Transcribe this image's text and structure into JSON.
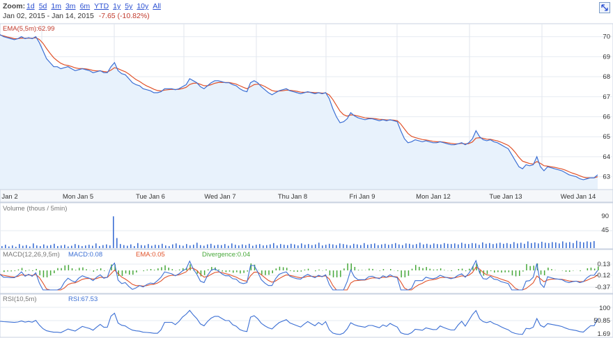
{
  "toolbar": {
    "zoom_label": "Zoom:",
    "zoom_options": [
      "1d",
      "5d",
      "1m",
      "3m",
      "6m",
      "YTD",
      "1y",
      "5y",
      "10y",
      "All"
    ],
    "range_start": "Jan 02, 2015",
    "range_sep": "-",
    "range_end": "Jan 14, 2015",
    "range_change": "-7.65 (-10.82%)",
    "change_color": "#c0392b"
  },
  "colors": {
    "price_line": "#3b6fd4",
    "ema_line": "#e0522a",
    "area_fill": "#e8f2fc",
    "volume_bar": "#3b6fd4",
    "macd_line": "#3b6fd4",
    "signal_line": "#e0522a",
    "divergence_bar": "#47a83a",
    "rsi_line": "#3b6fd4"
  },
  "chart_data": [
    {
      "type": "line",
      "panel": "price",
      "indicator_label": "EMA(5,5m):62.99",
      "x_labels": [
        "Jan 2",
        "Mon Jan 5",
        "Tue Jan 6",
        "Wed Jan 7",
        "Thu Jan 8",
        "Fri Jan 9",
        "Mon Jan 12",
        "Tue Jan 13",
        "Wed Jan 14"
      ],
      "y_ticks": [
        "70",
        "69",
        "68",
        "67",
        "66",
        "65",
        "64",
        "63"
      ],
      "ylim": [
        62.5,
        70.3
      ],
      "series": [
        {
          "name": "Price",
          "values": [
            70.1,
            70.0,
            69.95,
            69.9,
            69.85,
            69.9,
            70.0,
            69.9,
            69.95,
            69.9,
            70.0,
            69.7,
            69.3,
            68.9,
            68.7,
            68.5,
            68.5,
            68.4,
            68.45,
            68.5,
            68.4,
            68.3,
            68.35,
            68.4,
            68.35,
            68.3,
            68.2,
            68.25,
            68.3,
            68.2,
            68.2,
            68.5,
            68.7,
            68.3,
            68.15,
            68.1,
            67.9,
            67.7,
            67.6,
            67.55,
            67.4,
            67.35,
            67.3,
            67.2,
            67.2,
            67.25,
            67.4,
            67.4,
            67.4,
            67.35,
            67.4,
            67.5,
            67.6,
            67.9,
            67.8,
            67.7,
            67.5,
            67.4,
            67.55,
            67.7,
            67.8,
            67.8,
            67.75,
            67.7,
            67.7,
            67.6,
            67.55,
            67.4,
            67.3,
            67.25,
            67.7,
            67.8,
            67.7,
            67.5,
            67.35,
            67.2,
            67.1,
            67.2,
            67.3,
            67.35,
            67.4,
            67.3,
            67.25,
            67.2,
            67.15,
            67.2,
            67.25,
            67.2,
            67.15,
            67.2,
            67.15,
            67.2,
            66.9,
            66.4,
            66.0,
            65.7,
            65.75,
            65.9,
            66.2,
            66.05,
            65.95,
            65.9,
            65.85,
            65.9,
            65.9,
            65.85,
            65.8,
            65.85,
            65.8,
            65.85,
            65.8,
            65.75,
            65.3,
            64.9,
            64.7,
            64.75,
            64.85,
            64.8,
            64.75,
            64.8,
            64.75,
            64.7,
            64.7,
            64.75,
            64.7,
            64.65,
            64.6,
            64.6,
            64.65,
            64.7,
            64.6,
            64.7,
            64.9,
            65.3,
            65.0,
            64.85,
            64.8,
            64.85,
            64.75,
            64.7,
            64.6,
            64.5,
            64.4,
            64.1,
            63.8,
            63.5,
            63.4,
            63.6,
            63.55,
            63.6,
            64.0,
            63.5,
            63.3,
            63.5,
            63.45,
            63.4,
            63.35,
            63.3,
            63.2,
            63.1,
            63.05,
            63.0,
            62.9,
            62.85,
            62.9,
            62.95,
            62.95,
            63.1
          ],
          "line_color": "#3b6fd4"
        },
        {
          "name": "EMA",
          "values": [
            70.08,
            70.04,
            69.99,
            69.95,
            69.9,
            69.9,
            69.93,
            69.92,
            69.93,
            69.92,
            69.95,
            69.86,
            69.67,
            69.41,
            69.17,
            68.95,
            68.8,
            68.67,
            68.59,
            68.56,
            68.51,
            68.44,
            68.41,
            68.41,
            68.39,
            68.36,
            68.31,
            68.29,
            68.29,
            68.26,
            68.24,
            68.33,
            68.45,
            68.4,
            68.32,
            68.25,
            68.13,
            67.99,
            67.86,
            67.76,
            67.64,
            67.54,
            67.46,
            67.37,
            67.31,
            67.29,
            67.33,
            67.35,
            67.37,
            67.36,
            67.37,
            67.41,
            67.47,
            67.61,
            67.67,
            67.68,
            67.62,
            67.55,
            67.55,
            67.6,
            67.67,
            67.71,
            67.72,
            67.71,
            67.71,
            67.67,
            67.63,
            67.55,
            67.47,
            67.4,
            67.5,
            67.6,
            67.63,
            67.59,
            67.51,
            67.41,
            67.31,
            67.27,
            67.28,
            67.3,
            67.33,
            67.32,
            67.3,
            67.27,
            67.23,
            67.22,
            67.23,
            67.22,
            67.2,
            67.2,
            67.18,
            67.19,
            67.09,
            66.86,
            66.57,
            66.28,
            66.1,
            66.03,
            66.09,
            66.08,
            66.04,
            65.99,
            65.94,
            65.93,
            65.92,
            65.9,
            65.87,
            65.86,
            65.84,
            65.84,
            65.83,
            65.8,
            65.63,
            65.39,
            65.16,
            65.02,
            64.96,
            64.91,
            64.86,
            64.84,
            64.81,
            64.77,
            64.75,
            64.75,
            64.73,
            64.7,
            64.67,
            64.65,
            64.65,
            64.67,
            64.64,
            64.66,
            64.74,
            64.93,
            64.95,
            64.92,
            64.88,
            64.87,
            64.83,
            64.79,
            64.73,
            64.65,
            64.57,
            64.41,
            64.21,
            63.97,
            63.78,
            63.72,
            63.66,
            63.64,
            63.76,
            63.67,
            63.55,
            63.53,
            63.5,
            63.47,
            63.43,
            63.39,
            63.33,
            63.25,
            63.18,
            63.12,
            63.05,
            62.98,
            62.95,
            62.95,
            62.95,
            63.0
          ],
          "line_color": "#e0522a"
        }
      ]
    },
    {
      "type": "bar",
      "panel": "volume",
      "indicator_label": "Volume (thous / 5min)",
      "y_ticks": [
        "90",
        "45"
      ],
      "ylim": [
        0,
        100
      ],
      "values": [
        6,
        10,
        5,
        8,
        4,
        12,
        7,
        9,
        5,
        14,
        8,
        6,
        11,
        7,
        9,
        13,
        6,
        8,
        10,
        5,
        7,
        12,
        9,
        6,
        8,
        10,
        7,
        14,
        6,
        9,
        11,
        8,
        95,
        30,
        12,
        9,
        7,
        11,
        6,
        15,
        9,
        8,
        12,
        7,
        10,
        9,
        13,
        8,
        6,
        11,
        14,
        9,
        7,
        12,
        8,
        10,
        16,
        9,
        7,
        11,
        13,
        8,
        10,
        9,
        12,
        7,
        14,
        10,
        8,
        11,
        9,
        13,
        7,
        10,
        12,
        8,
        9,
        11,
        15,
        8,
        12,
        10,
        9,
        13,
        11,
        8,
        14,
        10,
        12,
        9,
        11,
        16,
        8,
        10,
        13,
        11,
        9,
        14,
        12,
        10,
        8,
        13,
        11,
        9,
        15,
        10,
        12,
        14,
        9,
        11,
        13,
        10,
        12,
        15,
        11,
        9,
        14,
        13,
        10,
        12,
        16,
        11,
        13,
        10,
        14,
        12,
        11,
        15,
        13,
        12,
        14,
        11,
        16,
        13,
        12,
        15,
        14,
        10,
        17,
        13,
        15,
        12,
        14,
        16,
        13,
        15,
        12,
        18,
        14,
        16,
        13,
        20,
        15,
        17,
        14,
        19,
        16,
        15,
        18,
        17,
        14,
        20,
        16,
        18,
        15,
        22,
        19,
        17,
        20,
        18,
        21
      ]
    },
    {
      "type": "line",
      "panel": "macd",
      "indicator_labels": {
        "params": "MACD(12,26,9,5m)",
        "macd": "MACD:0.08",
        "ema": "EMA:0.05",
        "divergence": "Divergence:0.04"
      },
      "y_ticks": [
        "0.13",
        "-0.12",
        "-0.37"
      ],
      "ylim": [
        -0.45,
        0.2
      ]
    },
    {
      "type": "line",
      "panel": "rsi",
      "indicator_labels": {
        "params": "RSI(10,5m)",
        "rsi": "RSI:67.53"
      },
      "y_ticks": [
        "100",
        "50.85",
        "1.69"
      ],
      "ylim": [
        0,
        100
      ]
    }
  ]
}
